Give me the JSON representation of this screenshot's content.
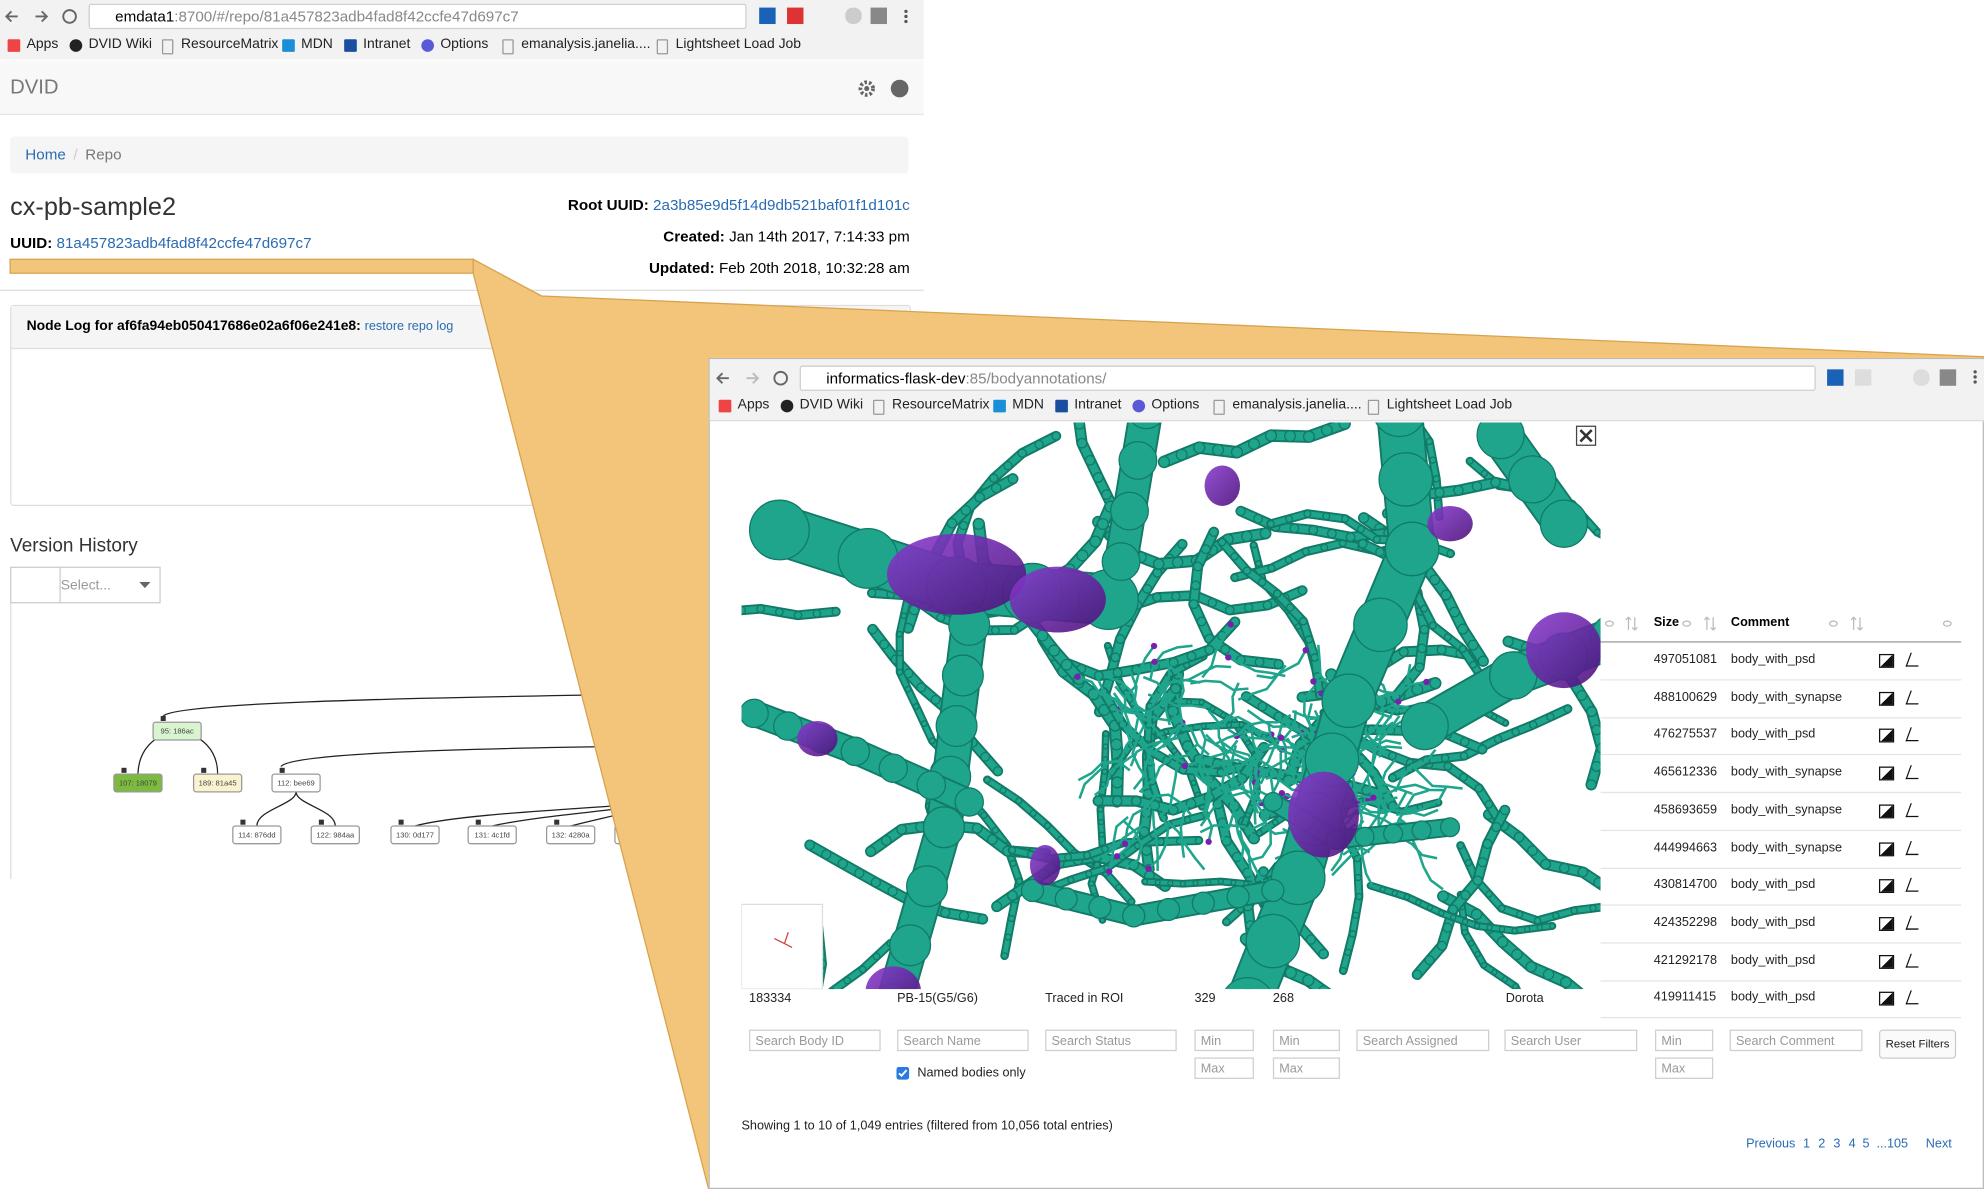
{
  "back_window": {
    "url_host": "emdata1",
    "url_path": ":8700/#/repo/81a457823adb4fad8f42ccfe47d697c7",
    "bookmarks": [
      "Apps",
      "DVID Wiki",
      "ResourceMatrix",
      "MDN",
      "Intranet",
      "Options",
      "emanalysis.janelia....",
      "Lightsheet Load Job"
    ],
    "app_title": "DVID",
    "breadcrumb": [
      "Home",
      "Repo"
    ],
    "repo_name": "cx-pb-sample2",
    "uuid_label": "UUID:",
    "uuid": "81a457823adb4fad8f42ccfe47d697c7",
    "root_uuid_label": "Root UUID:",
    "root_uuid": "2a3b85e9d5f14d9db521baf01f1d101c",
    "created_label": "Created:",
    "created": "Jan 14th 2017, 7:14:33 pm",
    "updated_label": "Updated:",
    "updated": "Feb 20th 2018, 10:32:28 am",
    "node_log_title": "Node Log for af6fa94eb050417686e02a6f06e241e8:",
    "restore_link": "restore repo log",
    "version_history": "Version History",
    "select_placeholder": "Select...",
    "graph_nodes": [
      "95: 186ac",
      "107: 18079",
      "189: 81a45",
      "112: bee69",
      "114: 876dd",
      "122: 984aa",
      "130: 0d177",
      "131: 4c1fd",
      "132: 4280a",
      "13"
    ]
  },
  "front_window": {
    "url_host": "informatics-flask-dev",
    "url_path": ":85/bodyannotations/",
    "bookmarks": [
      "Apps",
      "DVID Wiki",
      "ResourceMatrix",
      "MDN",
      "Intranet",
      "Options",
      "emanalysis.janelia....",
      "Lightsheet Load Job"
    ],
    "columns": [
      "Size",
      "Comment"
    ],
    "rows": [
      {
        "size": "497051081",
        "comment": "body_with_psd"
      },
      {
        "size": "488100629",
        "comment": "body_with_synapse"
      },
      {
        "size": "476275537",
        "comment": "body_with_psd"
      },
      {
        "size": "465612336",
        "comment": "body_with_synapse"
      },
      {
        "size": "458693659",
        "comment": "body_with_synapse"
      },
      {
        "size": "444994663",
        "comment": "body_with_synapse"
      },
      {
        "size": "430814700",
        "comment": "body_with_psd"
      },
      {
        "size": "424352298",
        "comment": "body_with_psd"
      },
      {
        "size": "421292178",
        "comment": "body_with_psd"
      },
      {
        "size": "419911415",
        "comment": "body_with_psd"
      }
    ],
    "last_row_cells": [
      "183334",
      "PB-15(G5/G6)",
      "Traced in ROI",
      "329",
      "268",
      "Dorota"
    ],
    "search_placeholders": [
      "Search Body ID",
      "Search Name",
      "Search Status",
      "Min",
      "Min",
      "Search Assigned",
      "Search User",
      "Min",
      "Search Comment",
      "Max",
      "Max",
      "Max"
    ],
    "named_only": "Named bodies only",
    "reset": "Reset Filters",
    "info": "Showing 1 to 10 of 1,049 entries (filtered from 10,056 total entries)",
    "pagination": [
      "Previous",
      "1",
      "2",
      "3",
      "4",
      "5",
      "...105",
      "Next"
    ]
  }
}
